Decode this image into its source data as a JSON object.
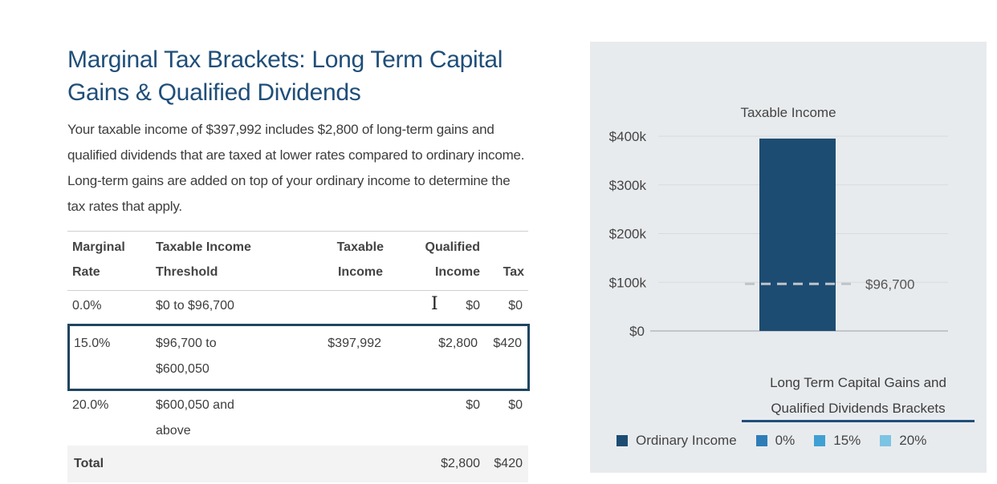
{
  "left": {
    "title": "Marginal Tax Brackets: Long Term Capital Gains & Qualified Dividends",
    "intro": "Your taxable income of $397,992 includes $2,800 of long-term gains and qualified dividends that are taxed at lower rates compared to ordinary income. Long-term gains are added on top of your ordinary income to determine the tax rates that apply."
  },
  "table": {
    "headers": {
      "rate_1": "Marginal",
      "rate_2": "Rate",
      "threshold_1": "Taxable Income",
      "threshold_2": "Threshold",
      "taxable_1": "Taxable",
      "taxable_2": "Income",
      "qualified_1": "Qualified",
      "qualified_2": "Income",
      "tax": "Tax"
    },
    "rows": [
      {
        "rate": "0.0%",
        "threshold_1": "$0 to $96,700",
        "threshold_2": "",
        "taxable": "",
        "qualified": "$0",
        "tax": "$0"
      },
      {
        "rate": "15.0%",
        "threshold_1": "$96,700 to",
        "threshold_2": "$600,050",
        "taxable": "$397,992",
        "qualified": "$2,800",
        "tax": "$420"
      },
      {
        "rate": "20.0%",
        "threshold_1": "$600,050 and",
        "threshold_2": "above",
        "taxable": "",
        "qualified": "$0",
        "tax": "$0"
      }
    ],
    "total": {
      "label": "Total",
      "qualified": "$2,800",
      "tax": "$420"
    }
  },
  "chart_data": {
    "type": "bar",
    "title": "Taxable Income",
    "categories": [
      ""
    ],
    "series": [
      {
        "name": "Ordinary Income",
        "values": [
          395192
        ]
      }
    ],
    "ylim": [
      0,
      400000
    ],
    "yticks": [
      "$0",
      "$100k",
      "$200k",
      "$300k",
      "$400k"
    ],
    "threshold": {
      "value": 96700,
      "label": "$96,700"
    },
    "grid": true,
    "legend_title": "Long Term Capital Gains and Qualified Dividends Brackets",
    "legend": [
      {
        "label": "Ordinary Income",
        "color": "#1d4c72"
      },
      {
        "label": "0%",
        "color": "#2e7db7"
      },
      {
        "label": "15%",
        "color": "#3fa0d4"
      },
      {
        "label": "20%",
        "color": "#7cc4e3"
      }
    ]
  }
}
